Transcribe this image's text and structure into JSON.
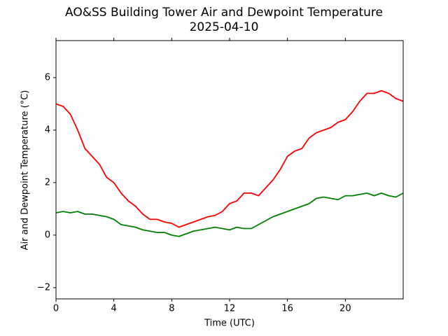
{
  "chart_data": {
    "type": "line",
    "title": "AO&SS Building Tower Air and Dewpoint Temperature",
    "subtitle": "2025-04-10",
    "x_label": "Time (UTC)",
    "y_label": "Air and Dewpoint Temperature (°C)",
    "x": [
      0,
      0.5,
      1,
      1.5,
      2,
      2.5,
      3,
      3.5,
      4,
      4.5,
      5,
      5.5,
      6,
      6.5,
      7,
      7.5,
      8,
      8.5,
      9,
      9.5,
      10,
      10.5,
      11,
      11.5,
      12,
      12.5,
      13,
      13.5,
      14,
      14.5,
      15,
      15.5,
      16,
      16.5,
      17,
      17.5,
      18,
      18.5,
      19,
      19.5,
      20,
      20.5,
      21,
      21.5,
      22,
      22.5,
      23,
      23.5,
      24
    ],
    "series": [
      {
        "color": "#ff0000",
        "values": [
          5.0,
          4.9,
          4.6,
          4.0,
          3.3,
          3.0,
          2.7,
          2.2,
          2.0,
          1.6,
          1.3,
          1.1,
          0.8,
          0.6,
          0.6,
          0.5,
          0.45,
          0.3,
          0.4,
          0.5,
          0.6,
          0.7,
          0.75,
          0.9,
          1.2,
          1.3,
          1.6,
          1.6,
          1.5,
          1.8,
          2.1,
          2.5,
          3.0,
          3.2,
          3.3,
          3.7,
          3.9,
          4.0,
          4.1,
          4.3,
          4.4,
          4.7,
          5.1,
          5.4,
          5.4,
          5.5,
          5.4,
          5.2,
          5.1
        ]
      },
      {
        "color": "#008000",
        "values": [
          0.85,
          0.9,
          0.85,
          0.9,
          0.8,
          0.8,
          0.75,
          0.7,
          0.6,
          0.4,
          0.35,
          0.3,
          0.2,
          0.15,
          0.1,
          0.1,
          0.0,
          -0.05,
          0.05,
          0.15,
          0.2,
          0.25,
          0.3,
          0.25,
          0.2,
          0.3,
          0.25,
          0.25,
          0.4,
          0.55,
          0.7,
          0.8,
          0.9,
          1.0,
          1.1,
          1.2,
          1.4,
          1.45,
          1.4,
          1.35,
          1.5,
          1.5,
          1.55,
          1.6,
          1.5,
          1.6,
          1.5,
          1.45,
          1.6
        ]
      }
    ],
    "xlim": [
      0,
      24
    ],
    "xticks": [
      0,
      4,
      8,
      12,
      16,
      20
    ],
    "ylim": [
      -2.43,
      7.41
    ],
    "yticks": [
      {
        "value": -2,
        "label": "−2"
      },
      0,
      2,
      4,
      6
    ]
  }
}
